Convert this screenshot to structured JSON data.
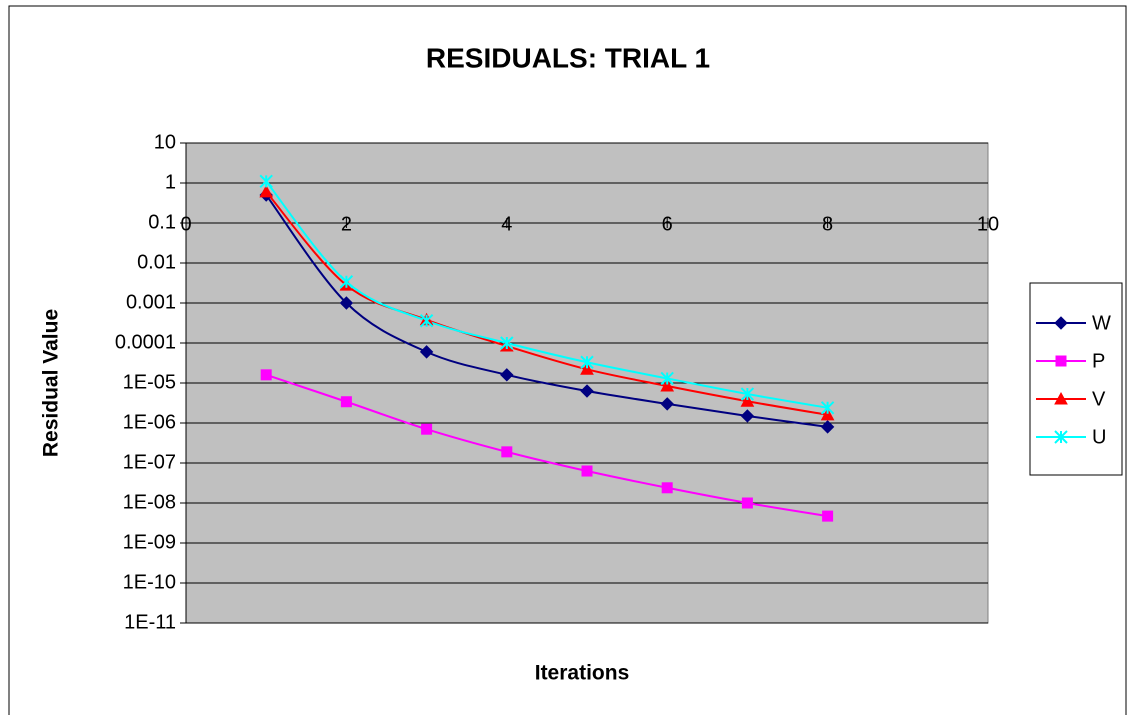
{
  "chart_data": {
    "type": "line",
    "title": "RESIDUALS: TRIAL 1",
    "x_label": "Iterations",
    "y_label": "Residual Value",
    "x": [
      1,
      2,
      3,
      4,
      5,
      6,
      7,
      8
    ],
    "series": [
      {
        "name": "W",
        "color": "#000080",
        "marker": "diamond",
        "values": [
          0.5,
          0.001,
          6e-05,
          1.6e-05,
          6.3e-06,
          3e-06,
          1.5e-06,
          8e-07
        ]
      },
      {
        "name": "P",
        "color": "#ff00ff",
        "marker": "square",
        "values": [
          1.6e-05,
          3.4e-06,
          7e-07,
          1.9e-07,
          6.3e-08,
          2.4e-08,
          1e-08,
          4.7e-09
        ]
      },
      {
        "name": "V",
        "color": "#ff0000",
        "marker": "triangle",
        "values": [
          0.6,
          0.0028,
          0.00038,
          8.4e-05,
          2.2e-05,
          8.4e-06,
          3.5e-06,
          1.6e-06
        ]
      },
      {
        "name": "U",
        "color": "#00ffff",
        "marker": "x",
        "values": [
          1.1,
          0.0034,
          0.00036,
          0.0001,
          3.3e-05,
          1.3e-05,
          5.3e-06,
          2.4e-06
        ]
      }
    ],
    "xlim": [
      0,
      10
    ],
    "xticks": [
      0,
      2,
      4,
      6,
      8,
      10
    ],
    "ylim": [
      1e-11,
      10
    ],
    "ylog": true,
    "yticks": [
      10,
      1,
      0.1,
      0.01,
      0.001,
      0.0001,
      {
        "value": 1e-05,
        "label": "1E-05"
      },
      {
        "value": 1e-06,
        "label": "1E-06"
      },
      {
        "value": 1e-07,
        "label": "1E-07"
      },
      {
        "value": 1e-08,
        "label": "1E-08"
      },
      {
        "value": 1e-09,
        "label": "1E-09"
      },
      {
        "value": 1e-10,
        "label": "1E-10"
      },
      {
        "value": 1e-11,
        "label": "1E-11"
      }
    ],
    "x_axis_crosses": 0.1,
    "grid": true,
    "smooth": true,
    "legend": "right",
    "plot_background": "#c0c0c0"
  }
}
